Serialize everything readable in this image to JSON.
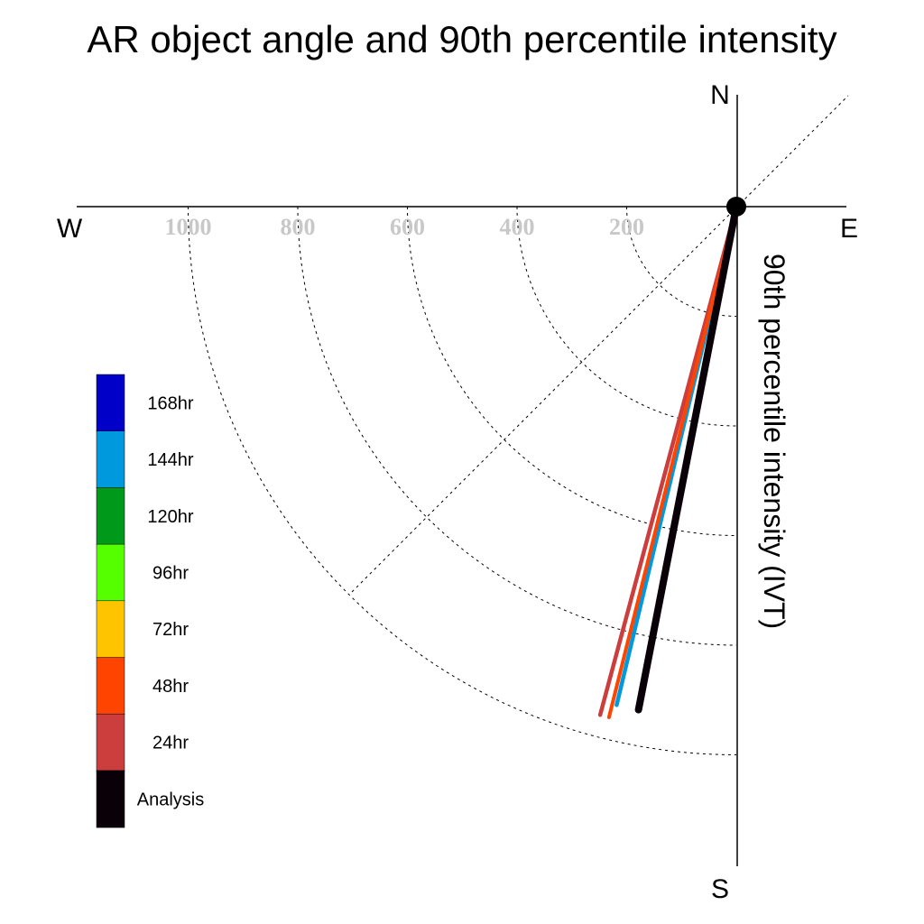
{
  "chart_data": {
    "type": "polar-vector",
    "title": "AR object angle and 90th percentile intensity",
    "axis_label": "90th percentile intensity (IVT)",
    "directions": {
      "north": "N",
      "south": "S",
      "east": "E",
      "west": "W"
    },
    "radial_ticks": [
      200,
      400,
      600,
      800,
      1000
    ],
    "radial_tick_labels": [
      "200",
      "400",
      "600",
      "800",
      "1000"
    ],
    "rmax": 1200,
    "series": [
      {
        "name": "144hr",
        "color": "#0099dd",
        "angle_deg": 193.5,
        "intensity": 935
      },
      {
        "name": "24hr",
        "color": "#cc3d3d",
        "angle_deg": 195.0,
        "intensity": 960
      },
      {
        "name": "48hr",
        "color": "#ff4400",
        "angle_deg": 194.0,
        "intensity": 960
      },
      {
        "name": "Analysis",
        "color": "#0a0008",
        "angle_deg": 191.0,
        "intensity": 935
      }
    ],
    "legend": [
      {
        "label": "168hr",
        "color": "#0000c8"
      },
      {
        "label": "144hr",
        "color": "#0099dd"
      },
      {
        "label": "120hr",
        "color": "#00991a"
      },
      {
        "label": "96hr",
        "color": "#55ff00"
      },
      {
        "label": "72hr",
        "color": "#ffc400"
      },
      {
        "label": "48hr",
        "color": "#ff4400"
      },
      {
        "label": "24hr",
        "color": "#cc3d3d"
      },
      {
        "label": "Analysis",
        "color": "#0a0008"
      }
    ]
  }
}
